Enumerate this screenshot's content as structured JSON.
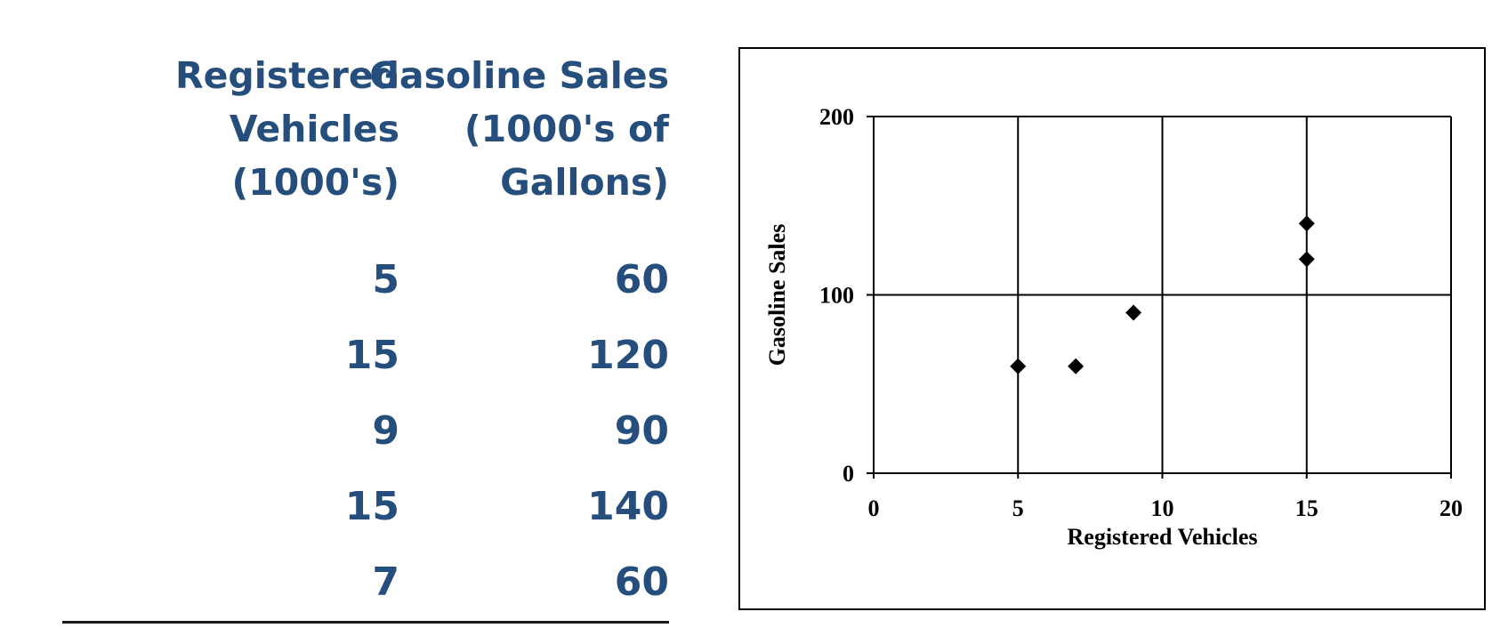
{
  "table": {
    "headers": [
      "Registered\nVehicles\n(1000's)",
      "Gasoline Sales\n(1000's of\nGallons)"
    ],
    "rows": [
      [
        "5",
        "60"
      ],
      [
        "15",
        "120"
      ],
      [
        "9",
        "90"
      ],
      [
        "15",
        "140"
      ],
      [
        "7",
        "60"
      ]
    ],
    "text_color": "#254e7d"
  },
  "chart_data": {
    "type": "scatter",
    "title": "",
    "xlabel": "Registered Vehicles",
    "ylabel": "Gasoline Sales",
    "xlim": [
      0,
      20
    ],
    "ylim": [
      0,
      200
    ],
    "x_ticks": [
      "0",
      "5",
      "10",
      "15",
      "20"
    ],
    "y_ticks": [
      "0",
      "100",
      "200"
    ],
    "grid": true,
    "marker": "diamond",
    "marker_color": "#000000",
    "points": [
      {
        "x": 5,
        "y": 60
      },
      {
        "x": 15,
        "y": 120
      },
      {
        "x": 9,
        "y": 90
      },
      {
        "x": 15,
        "y": 140
      },
      {
        "x": 7,
        "y": 60
      }
    ]
  }
}
